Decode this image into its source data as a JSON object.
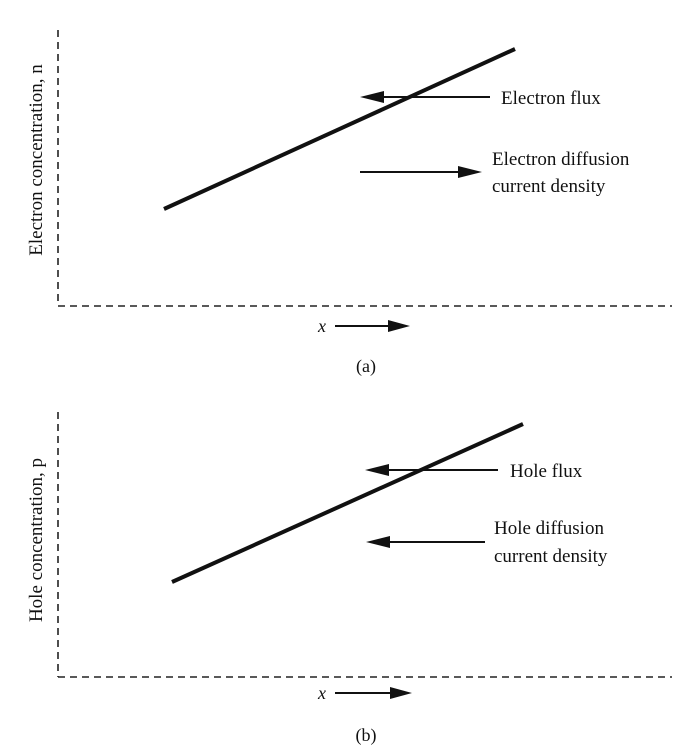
{
  "panel_a": {
    "ylabel": "Electron concentration, n",
    "xlabel": "x",
    "annotation_flux": "Electron flux",
    "annotation_current_line1": "Electron diffusion",
    "annotation_current_line2": "current density",
    "caption": "(a)"
  },
  "panel_b": {
    "ylabel": "Hole concentration, p",
    "xlabel": "x",
    "annotation_flux": "Hole flux",
    "annotation_current_line1": "Hole diffusion",
    "annotation_current_line2": "current density",
    "caption": "(b)"
  }
}
